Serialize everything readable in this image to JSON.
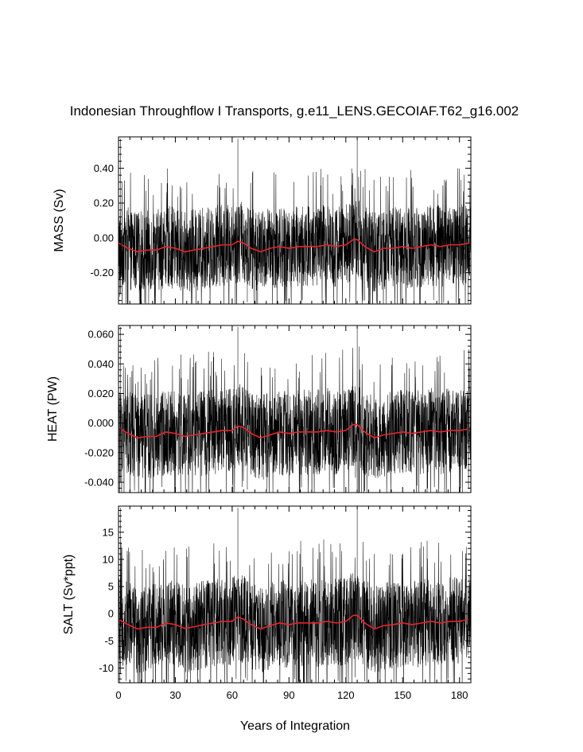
{
  "chart_data": {
    "type": "line",
    "title": "Indonesian Throughflow I Transports, g.e11_LENS.GECOIAF.T62_g16.002",
    "xlabel": "Years of Integration",
    "xlim": [
      0,
      186
    ],
    "xticks": [
      0,
      30,
      60,
      90,
      120,
      150,
      180
    ],
    "xtick_labels": [
      "0",
      "30",
      "60",
      "90",
      "120",
      "150",
      "180"
    ],
    "grid": false,
    "legend": "none",
    "series_colors": {
      "monthly": "#000000",
      "annual_mean": "#e8232a"
    },
    "panels": [
      {
        "ylabel": "MASS (Sv)",
        "ylim": [
          -0.38,
          0.58
        ],
        "yticks": [
          -0.2,
          0,
          0.2,
          0.4
        ],
        "ytick_labels": [
          "-0.20",
          "0.00",
          "0.20",
          "0.40"
        ],
        "annual_mean": {
          "x": [
            0,
            5,
            10,
            15,
            20,
            25,
            30,
            35,
            40,
            45,
            50,
            55,
            60,
            63,
            66,
            70,
            75,
            80,
            85,
            90,
            95,
            100,
            105,
            110,
            115,
            120,
            124,
            126,
            130,
            135,
            140,
            145,
            150,
            155,
            160,
            165,
            170,
            175,
            180,
            185
          ],
          "y": [
            -0.03,
            -0.06,
            -0.08,
            -0.07,
            -0.07,
            -0.05,
            -0.06,
            -0.08,
            -0.07,
            -0.06,
            -0.05,
            -0.04,
            -0.04,
            -0.02,
            -0.03,
            -0.06,
            -0.08,
            -0.06,
            -0.05,
            -0.06,
            -0.05,
            -0.05,
            -0.05,
            -0.04,
            -0.05,
            -0.04,
            -0.01,
            -0.01,
            -0.05,
            -0.08,
            -0.06,
            -0.06,
            -0.05,
            -0.06,
            -0.05,
            -0.04,
            -0.05,
            -0.04,
            -0.04,
            -0.03
          ]
        },
        "monthly_envelope": {
          "typical_min": -0.25,
          "typical_max": 0.2
        },
        "spikes": [
          {
            "x": 1,
            "y": 0.57
          },
          {
            "x": 63,
            "y": 0.57
          },
          {
            "x": 126,
            "y": 0.57
          },
          {
            "x": 68,
            "y": -0.37
          },
          {
            "x": 130,
            "y": -0.36
          },
          {
            "x": 1,
            "y": -0.32
          }
        ]
      },
      {
        "ylabel": "HEAT (PW)",
        "ylim": [
          -0.047,
          0.066
        ],
        "yticks": [
          -0.04,
          -0.02,
          0,
          0.02,
          0.04,
          0.06
        ],
        "ytick_labels": [
          "-0.040",
          "-0.020",
          "0.000",
          "0.020",
          "0.040",
          "0.060"
        ],
        "annual_mean": {
          "x": [
            0,
            5,
            10,
            15,
            20,
            25,
            30,
            35,
            40,
            45,
            50,
            55,
            60,
            63,
            66,
            70,
            75,
            80,
            85,
            90,
            95,
            100,
            105,
            110,
            115,
            120,
            124,
            126,
            130,
            135,
            140,
            145,
            150,
            155,
            160,
            165,
            170,
            175,
            180,
            185
          ],
          "y": [
            -0.003,
            -0.007,
            -0.01,
            -0.009,
            -0.009,
            -0.006,
            -0.007,
            -0.009,
            -0.008,
            -0.007,
            -0.006,
            -0.005,
            -0.005,
            -0.002,
            -0.003,
            -0.007,
            -0.01,
            -0.008,
            -0.006,
            -0.007,
            -0.006,
            -0.006,
            -0.006,
            -0.005,
            -0.006,
            -0.005,
            -0.001,
            -0.001,
            -0.006,
            -0.01,
            -0.008,
            -0.007,
            -0.006,
            -0.007,
            -0.006,
            -0.005,
            -0.006,
            -0.005,
            -0.005,
            -0.004
          ]
        },
        "monthly_envelope": {
          "typical_min": -0.03,
          "typical_max": 0.025
        },
        "spikes": [
          {
            "x": 1,
            "y": 0.065
          },
          {
            "x": 63,
            "y": 0.065
          },
          {
            "x": 126,
            "y": 0.065
          },
          {
            "x": 68,
            "y": -0.045
          },
          {
            "x": 130,
            "y": -0.046
          },
          {
            "x": 1,
            "y": -0.04
          }
        ]
      },
      {
        "ylabel": "SALT (Sv*ppt)",
        "ylim": [
          -12.7,
          19.8
        ],
        "yticks": [
          -10,
          -5,
          0,
          5,
          10,
          15
        ],
        "ytick_labels": [
          "-10",
          "-5",
          "0",
          "5",
          "10",
          "15"
        ],
        "annual_mean": {
          "x": [
            0,
            5,
            10,
            15,
            20,
            25,
            30,
            35,
            40,
            45,
            50,
            55,
            60,
            63,
            66,
            70,
            75,
            80,
            85,
            90,
            95,
            100,
            105,
            110,
            115,
            120,
            124,
            126,
            130,
            135,
            140,
            145,
            150,
            155,
            160,
            165,
            170,
            175,
            180,
            185
          ],
          "y": [
            -1.0,
            -2.0,
            -2.8,
            -2.5,
            -2.5,
            -1.7,
            -2.0,
            -2.7,
            -2.4,
            -2.0,
            -1.7,
            -1.4,
            -1.4,
            -0.6,
            -1.0,
            -2.0,
            -2.8,
            -2.2,
            -1.7,
            -2.0,
            -1.7,
            -1.7,
            -1.7,
            -1.4,
            -1.7,
            -1.4,
            -0.3,
            -0.3,
            -1.7,
            -2.8,
            -2.2,
            -2.0,
            -1.7,
            -2.0,
            -1.7,
            -1.4,
            -1.7,
            -1.4,
            -1.4,
            -1.0
          ]
        },
        "monthly_envelope": {
          "typical_min": -8.5,
          "typical_max": 7.0
        },
        "spikes": [
          {
            "x": 1,
            "y": 19.5
          },
          {
            "x": 63,
            "y": 19.5
          },
          {
            "x": 126,
            "y": 19.5
          },
          {
            "x": 68,
            "y": -12.3
          },
          {
            "x": 130,
            "y": -12.4
          },
          {
            "x": 1,
            "y": -11
          }
        ]
      }
    ]
  }
}
